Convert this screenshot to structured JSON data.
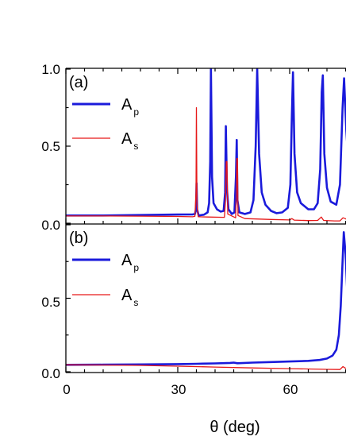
{
  "chart_data": [
    {
      "type": "line",
      "panel_label": "(a)",
      "xlim": [
        0,
        76
      ],
      "ylim": [
        0,
        1.0
      ],
      "yticks": [
        "0.0",
        "0.5",
        "1.0"
      ],
      "legend_position": "top-left",
      "series": [
        {
          "name": "A_p",
          "color": "#1a1adb",
          "points": [
            [
              0,
              0.05
            ],
            [
              10,
              0.05
            ],
            [
              20,
              0.053
            ],
            [
              30,
              0.056
            ],
            [
              34,
              0.057
            ],
            [
              34.6,
              0.06
            ],
            [
              34.9,
              0.09
            ],
            [
              35.05,
              0.26
            ],
            [
              35.2,
              0.09
            ],
            [
              35.6,
              0.05
            ],
            [
              37,
              0.055
            ],
            [
              38,
              0.07
            ],
            [
              38.4,
              0.13
            ],
            [
              38.7,
              0.4
            ],
            [
              38.9,
              1.0
            ],
            [
              39.2,
              0.3
            ],
            [
              39.6,
              0.13
            ],
            [
              40.5,
              0.09
            ],
            [
              41.5,
              0.075
            ],
            [
              42.3,
              0.08
            ],
            [
              42.7,
              0.2
            ],
            [
              42.9,
              0.63
            ],
            [
              43.2,
              0.22
            ],
            [
              43.6,
              0.09
            ],
            [
              44.5,
              0.06
            ],
            [
              45.2,
              0.07
            ],
            [
              45.6,
              0.3
            ],
            [
              45.8,
              0.54
            ],
            [
              46.0,
              0.15
            ],
            [
              46.5,
              0.07
            ],
            [
              48,
              0.06
            ],
            [
              49.5,
              0.07
            ],
            [
              50.3,
              0.15
            ],
            [
              50.9,
              0.5
            ],
            [
              51.3,
              1.0
            ],
            [
              51.8,
              0.45
            ],
            [
              52.5,
              0.2
            ],
            [
              53.5,
              0.12
            ],
            [
              55,
              0.08
            ],
            [
              56.5,
              0.065
            ],
            [
              58,
              0.07
            ],
            [
              59.5,
              0.1
            ],
            [
              60.2,
              0.25
            ],
            [
              60.6,
              0.7
            ],
            [
              60.9,
              0.98
            ],
            [
              61.3,
              0.45
            ],
            [
              62,
              0.2
            ],
            [
              63,
              0.13
            ],
            [
              65,
              0.09
            ],
            [
              66.5,
              0.09
            ],
            [
              67.5,
              0.13
            ],
            [
              68.2,
              0.35
            ],
            [
              68.6,
              0.85
            ],
            [
              68.9,
              0.96
            ],
            [
              69.3,
              0.45
            ],
            [
              70,
              0.23
            ],
            [
              71,
              0.14
            ],
            [
              72.5,
              0.12
            ],
            [
              73.5,
              0.25
            ],
            [
              74.2,
              0.75
            ],
            [
              74.6,
              0.94
            ],
            [
              75.2,
              0.6
            ],
            [
              76,
              0.3
            ]
          ]
        },
        {
          "name": "A_s",
          "color": "#e61919",
          "points": [
            [
              0,
              0.047
            ],
            [
              10,
              0.047
            ],
            [
              20,
              0.046
            ],
            [
              30,
              0.044
            ],
            [
              34,
              0.042
            ],
            [
              34.6,
              0.045
            ],
            [
              34.9,
              0.2
            ],
            [
              35.0,
              0.75
            ],
            [
              35.15,
              0.12
            ],
            [
              35.5,
              0.042
            ],
            [
              38,
              0.04
            ],
            [
              42.5,
              0.038
            ],
            [
              42.8,
              0.15
            ],
            [
              43.0,
              0.4
            ],
            [
              43.2,
              0.4
            ],
            [
              43.4,
              0.06
            ],
            [
              45.5,
              0.035
            ],
            [
              45.7,
              0.2
            ],
            [
              45.85,
              0.42
            ],
            [
              46.0,
              0.42
            ],
            [
              46.15,
              0.05
            ],
            [
              48,
              0.03
            ],
            [
              55,
              0.024
            ],
            [
              60,
              0.021
            ],
            [
              60.6,
              0.03
            ],
            [
              61.2,
              0.02
            ],
            [
              65,
              0.017
            ],
            [
              67.5,
              0.018
            ],
            [
              68.5,
              0.04
            ],
            [
              69.1,
              0.018
            ],
            [
              72,
              0.015
            ],
            [
              73.5,
              0.015
            ],
            [
              74.3,
              0.035
            ],
            [
              74.9,
              0.03
            ],
            [
              76,
              0.015
            ]
          ]
        }
      ]
    },
    {
      "type": "line",
      "panel_label": "(b)",
      "xlim": [
        0,
        76
      ],
      "ylim": [
        0,
        1.0
      ],
      "yticks": [
        "0.0",
        "0.5"
      ],
      "xticks": [
        "0",
        "30",
        "60"
      ],
      "xlabel": "θ (deg)",
      "legend_position": "top-left",
      "series": [
        {
          "name": "A_p",
          "color": "#1a1adb",
          "points": [
            [
              0,
              0.047
            ],
            [
              10,
              0.048
            ],
            [
              20,
              0.05
            ],
            [
              30,
              0.052
            ],
            [
              35,
              0.054
            ],
            [
              40,
              0.057
            ],
            [
              44,
              0.06
            ],
            [
              45,
              0.062
            ],
            [
              46,
              0.058
            ],
            [
              50,
              0.062
            ],
            [
              55,
              0.066
            ],
            [
              60,
              0.07
            ],
            [
              65,
              0.074
            ],
            [
              68,
              0.08
            ],
            [
              70,
              0.09
            ],
            [
              71.5,
              0.11
            ],
            [
              72.5,
              0.15
            ],
            [
              73.2,
              0.25
            ],
            [
              73.7,
              0.45
            ],
            [
              74.1,
              0.7
            ],
            [
              74.5,
              0.95
            ],
            [
              75.0,
              0.8
            ],
            [
              75.5,
              0.5
            ],
            [
              76,
              0.3
            ]
          ]
        },
        {
          "name": "A_s",
          "color": "#e61919",
          "points": [
            [
              0,
              0.047
            ],
            [
              10,
              0.046
            ],
            [
              20,
              0.043
            ],
            [
              30,
              0.038
            ],
            [
              40,
              0.032
            ],
            [
              50,
              0.026
            ],
            [
              60,
              0.021
            ],
            [
              70,
              0.016
            ],
            [
              73.5,
              0.015
            ],
            [
              74.3,
              0.035
            ],
            [
              74.9,
              0.025
            ],
            [
              76,
              0.014
            ]
          ]
        }
      ]
    }
  ],
  "legend_entries": [
    {
      "main": "A",
      "sub": "p"
    },
    {
      "main": "A",
      "sub": "s"
    }
  ]
}
